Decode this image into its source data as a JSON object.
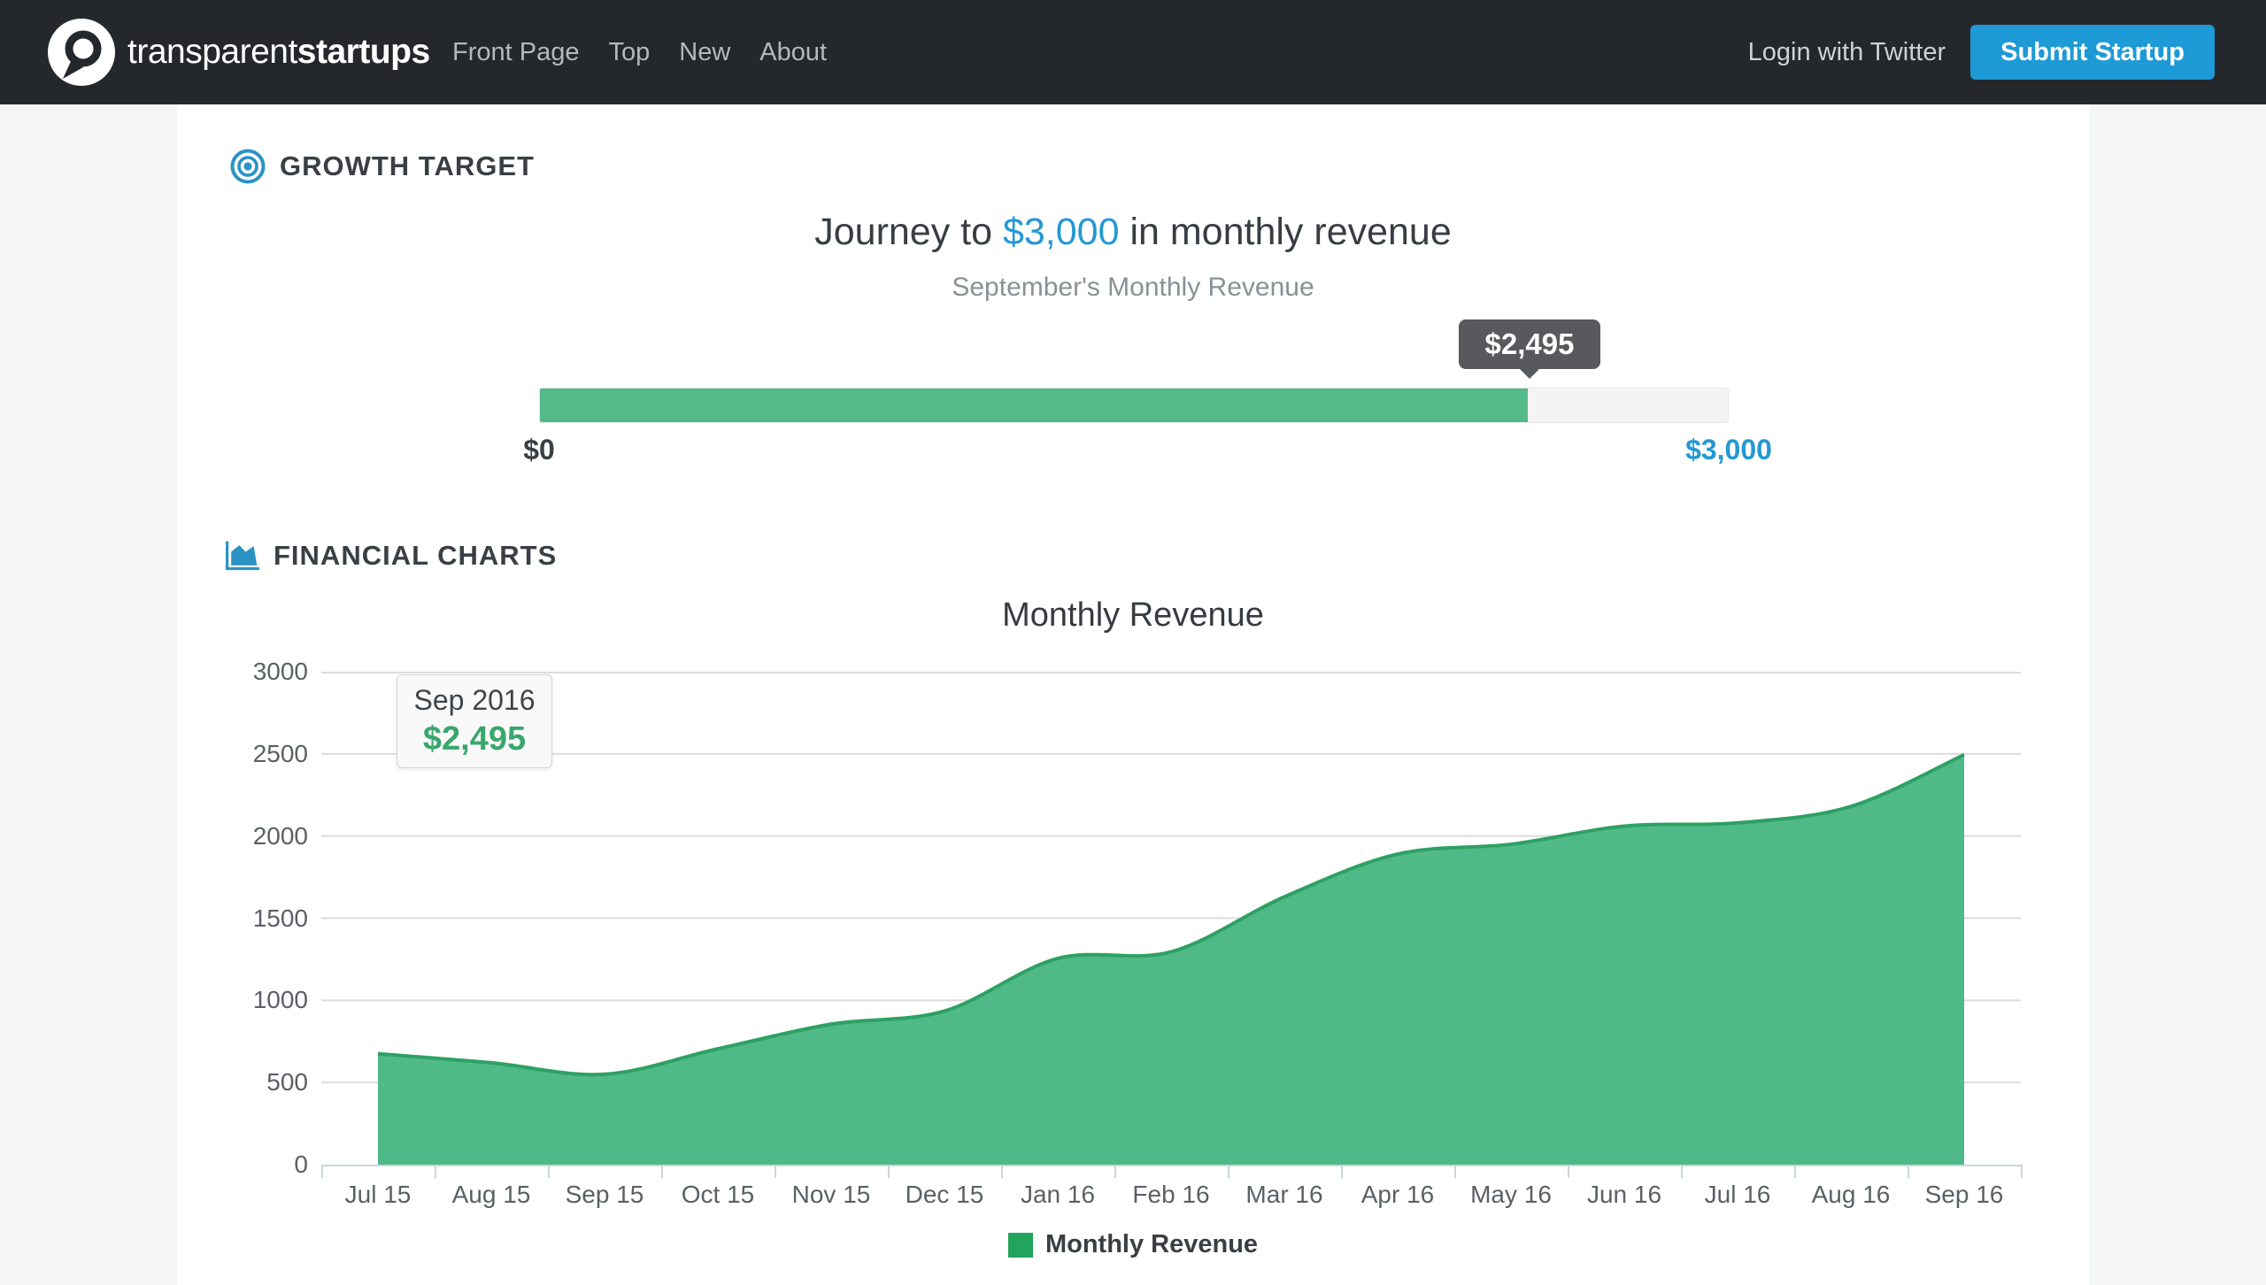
{
  "navbar": {
    "brand_light": "transparent",
    "brand_bold": "startups",
    "links": [
      {
        "label": "Front Page"
      },
      {
        "label": "Top"
      },
      {
        "label": "New"
      },
      {
        "label": "About"
      }
    ],
    "login_label": "Login with Twitter",
    "submit_label": "Submit Startup"
  },
  "growth_target": {
    "section_title": "GROWTH TARGET",
    "heading_prefix": "Journey to ",
    "heading_amount": "$3,000",
    "heading_suffix": " in monthly revenue",
    "subtitle": "September's Monthly Revenue",
    "tooltip_value": "$2,495",
    "progress": {
      "current": 2495,
      "target": 3000,
      "min_label": "$0",
      "max_label": "$3,000"
    }
  },
  "financial_charts": {
    "section_title": "FINANCIAL CHARTS"
  },
  "chart_data": {
    "type": "area",
    "title": "Monthly Revenue",
    "categories": [
      "Jul 15",
      "Aug 15",
      "Sep 15",
      "Oct 15",
      "Nov 15",
      "Dec 15",
      "Jan 16",
      "Feb 16",
      "Mar 16",
      "Apr 16",
      "May 16",
      "Jun 16",
      "Jul 16",
      "Aug 16",
      "Sep 16"
    ],
    "series": [
      {
        "name": "Monthly Revenue",
        "values": [
          675,
          620,
          550,
          705,
          855,
          935,
          1255,
          1295,
          1630,
          1890,
          1950,
          2060,
          2080,
          2180,
          2495
        ]
      }
    ],
    "xlabel": "",
    "ylabel": "",
    "ylim": [
      0,
      3000
    ],
    "yticks": [
      0,
      500,
      1000,
      1500,
      2000,
      2500,
      3000
    ],
    "grid": true,
    "legend_position": "bottom",
    "tooltip": {
      "label": "Sep 2016",
      "value": "$2,495"
    }
  },
  "colors": {
    "navbar_bg": "#24282d",
    "accent_blue": "#1e9ad6",
    "text_blue": "#2598d4",
    "icon_blue": "#2a93c4",
    "progress_green": "#55ba8a",
    "chart_area_green": "#4fb988",
    "chart_line_green": "#2da162",
    "legend_green": "#21a45c",
    "tooltip_value_green": "#3aa76d",
    "tooltip_dark_bg": "#58595c",
    "gridline": "#dcdcdc",
    "axis": "#ccd6db"
  }
}
